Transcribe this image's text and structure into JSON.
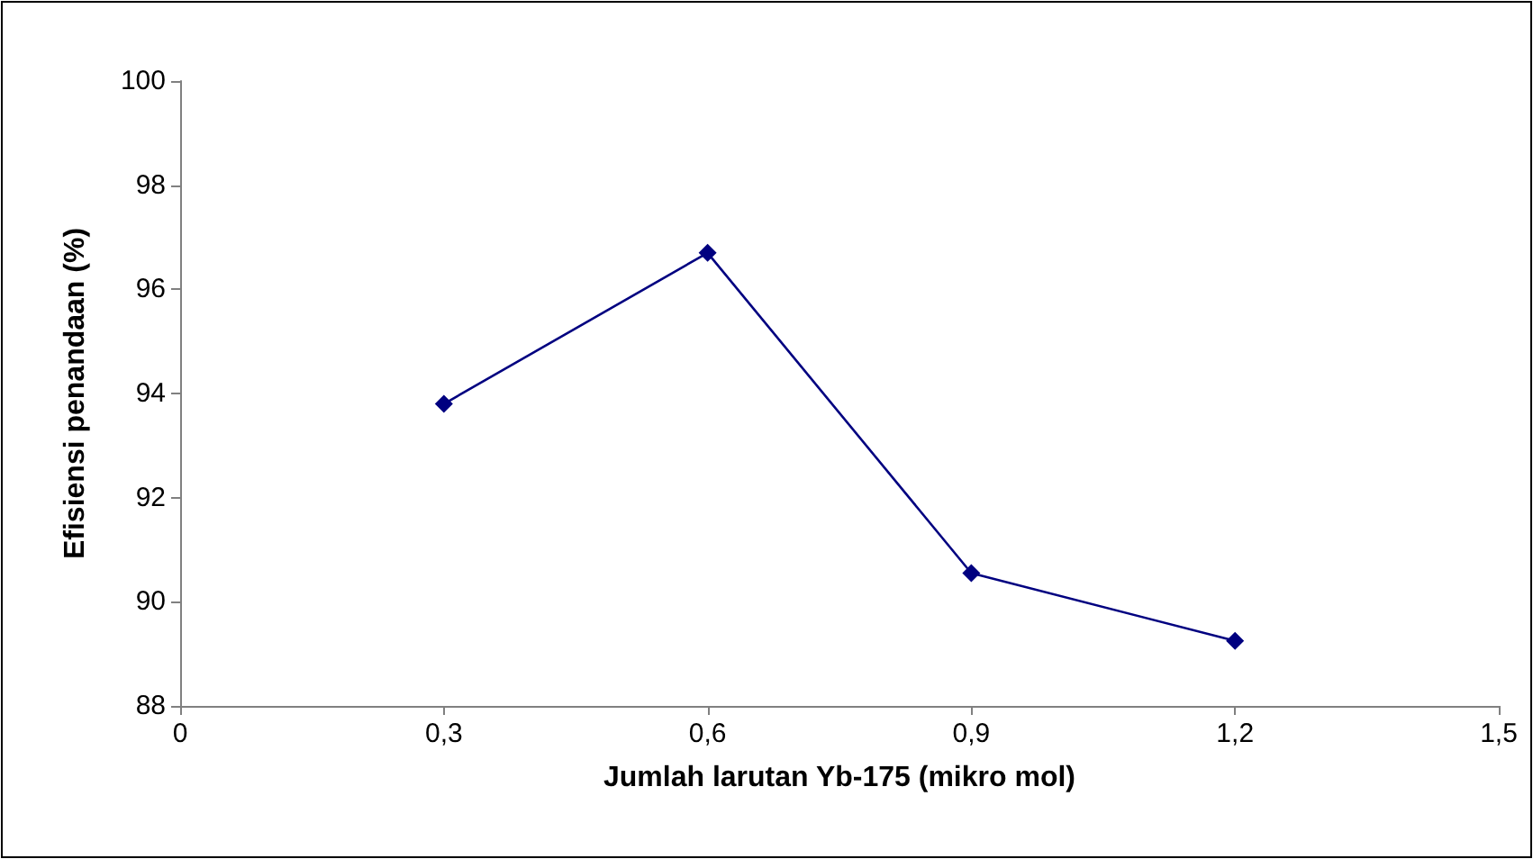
{
  "chart_data": {
    "type": "line",
    "xlabel": "Jumlah larutan Yb-175 (mikro mol)",
    "ylabel": "Efisiensi penandaan (%)",
    "x": [
      0.3,
      0.6,
      0.9,
      1.2
    ],
    "series": [
      {
        "color": "#000080",
        "values": [
          93.8,
          96.7,
          90.55,
          89.25
        ]
      }
    ],
    "xlim": [
      0,
      1.5
    ],
    "xticks": [
      0,
      {
        "value": 0.3,
        "label": "0,3"
      },
      {
        "value": 0.6,
        "label": "0,6"
      },
      {
        "value": 0.9,
        "label": "0,9"
      },
      {
        "value": 1.2,
        "label": "1,2"
      },
      {
        "value": 1.5,
        "label": "1,5"
      }
    ],
    "ylim": [
      88,
      100
    ],
    "yticks": [
      88,
      90,
      92,
      94,
      96,
      98,
      100
    ],
    "grid": false,
    "marker": "diamond",
    "line_style": "solid"
  }
}
